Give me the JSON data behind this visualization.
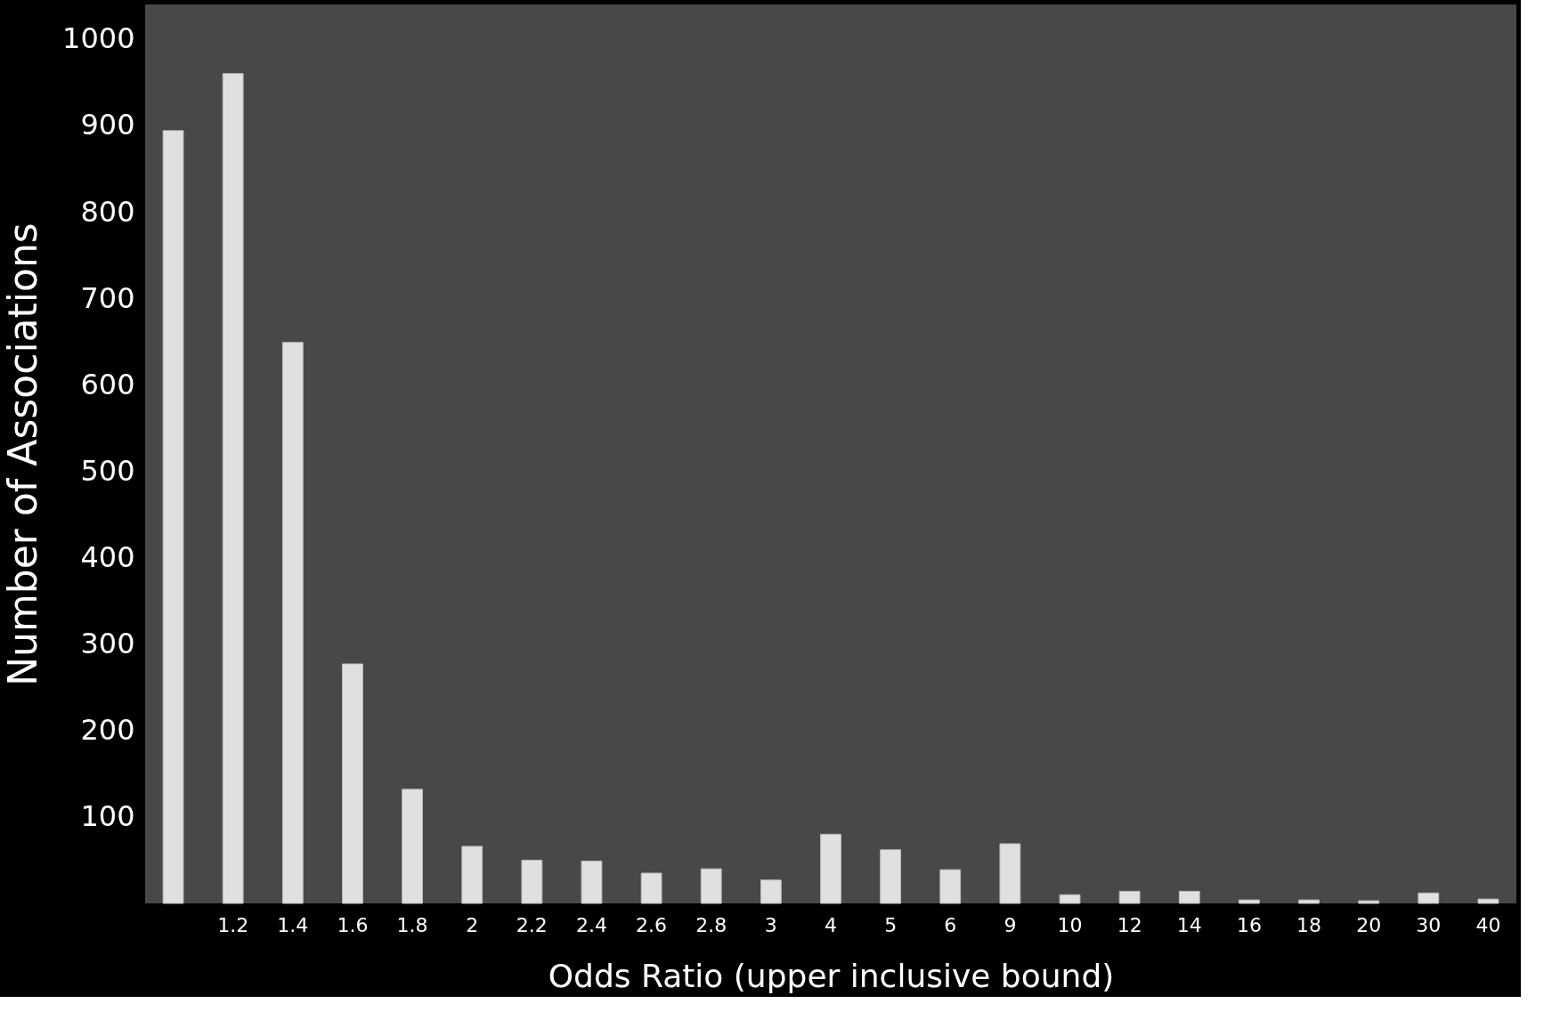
{
  "chart_data": {
    "type": "bar",
    "xlabel": "Odds Ratio (upper inclusive bound)",
    "ylabel": "Number of Associations",
    "categories": [
      null,
      "1.2",
      "1.4",
      "1.6",
      "1.8",
      "2",
      "2.2",
      "2.4",
      "2.6",
      "2.8",
      "3",
      "4",
      "5",
      "6",
      "9",
      "10",
      "12",
      "14",
      "16",
      "18",
      "20",
      "30",
      "40"
    ],
    "values": [
      894,
      960,
      649,
      277,
      132,
      66,
      50,
      49,
      35,
      40,
      27,
      80,
      62,
      39,
      69,
      10,
      14,
      14,
      4,
      4,
      3,
      12,
      5
    ],
    "color": "#e0e0e0",
    "ylim": [
      0,
      1040
    ],
    "yticks": [
      100,
      200,
      300,
      400,
      500,
      600,
      700,
      800,
      900,
      1000
    ],
    "grid": false
  }
}
